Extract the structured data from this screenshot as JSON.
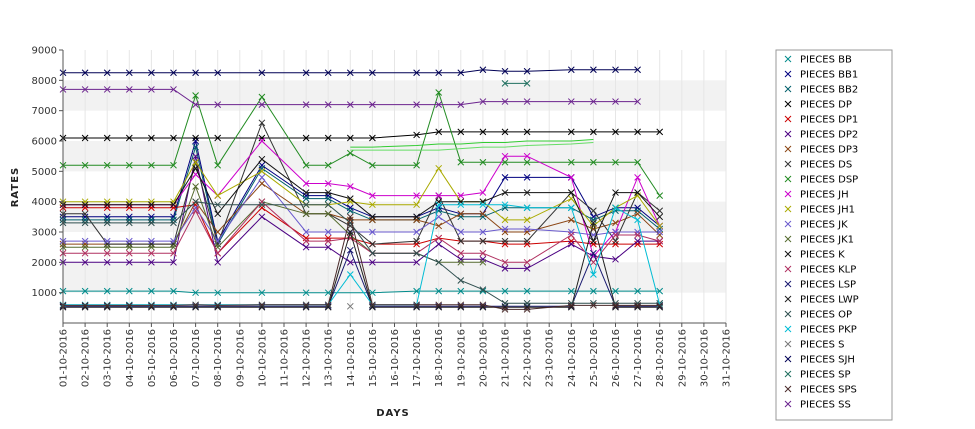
{
  "chart_data": {
    "type": "line",
    "title": "",
    "xlabel": "DAYS",
    "ylabel": "RATES",
    "ylim": [
      0,
      9000
    ],
    "yticks": [
      1000,
      2000,
      3000,
      4000,
      5000,
      6000,
      7000,
      8000,
      9000
    ],
    "grid": "alternating horizontal bands",
    "legend_position": "right",
    "x": [
      "01-10-2016",
      "02-10-2016",
      "03-10-2016",
      "04-10-2016",
      "05-10-2016",
      "06-10-2016",
      "07-10-2016",
      "08-10-2016",
      "09-10-2016",
      "10-10-2016",
      "11-10-2016",
      "12-10-2016",
      "13-10-2016",
      "14-10-2016",
      "15-10-2016",
      "16-10-2016",
      "17-10-2016",
      "18-10-2016",
      "19-10-2016",
      "20-10-2016",
      "21-10-2016",
      "22-10-2016",
      "23-10-2016",
      "24-10-2016",
      "25-10-2016",
      "26-10-2016",
      "27-10-2016",
      "28-10-2016",
      "29-10-2016",
      "30-10-2016",
      "31-10-2016"
    ],
    "series": [
      {
        "name": "PIECES BB",
        "color": "#008b8b",
        "values": [
          1050,
          1050,
          1050,
          1050,
          1050,
          1050,
          1000,
          1000,
          null,
          1000,
          null,
          1000,
          1000,
          null,
          1000,
          null,
          1050,
          1050,
          1050,
          1050,
          1050,
          1050,
          null,
          1050,
          1050,
          1050,
          1050,
          1050,
          null,
          null,
          null
        ]
      },
      {
        "name": "PIECES BB1",
        "color": "#000080",
        "values": [
          3500,
          3500,
          3500,
          3500,
          3500,
          3500,
          6000,
          2700,
          null,
          5200,
          null,
          4200,
          4200,
          3800,
          3500,
          null,
          3500,
          3800,
          3600,
          3600,
          4800,
          4800,
          null,
          4800,
          3500,
          3800,
          3800,
          3200,
          null,
          null,
          null
        ]
      },
      {
        "name": "PIECES BB2",
        "color": "#005f6b",
        "values": [
          3400,
          3400,
          3400,
          3400,
          3400,
          3400,
          5800,
          2600,
          null,
          5100,
          null,
          4100,
          4100,
          3700,
          3400,
          null,
          3400,
          3700,
          3500,
          3500,
          3800,
          3800,
          null,
          3800,
          3400,
          3700,
          3700,
          3100,
          null,
          null,
          null
        ]
      },
      {
        "name": "PIECES DP",
        "color": "#000000",
        "values": [
          6100,
          6100,
          6100,
          6100,
          6100,
          6100,
          6100,
          6100,
          null,
          6100,
          null,
          6100,
          6100,
          6100,
          6100,
          null,
          6200,
          6300,
          6300,
          6300,
          6300,
          6300,
          null,
          6300,
          6300,
          6300,
          6300,
          6300,
          null,
          null,
          null
        ]
      },
      {
        "name": "PIECES DP1",
        "color": "#cc0000",
        "values": [
          3800,
          3800,
          3800,
          3800,
          3800,
          3800,
          3900,
          2300,
          null,
          3800,
          null,
          2800,
          2800,
          2800,
          2600,
          null,
          2600,
          2800,
          2700,
          2700,
          2600,
          2600,
          null,
          2700,
          2600,
          2600,
          2600,
          2600,
          null,
          null,
          null
        ]
      },
      {
        "name": "PIECES DP2",
        "color": "#4b0082",
        "values": [
          2000,
          2000,
          2000,
          2000,
          2000,
          2000,
          5500,
          2000,
          null,
          3500,
          null,
          2500,
          2500,
          2000,
          2000,
          null,
          2000,
          2600,
          2100,
          2100,
          1800,
          1800,
          null,
          2600,
          2200,
          2100,
          2700,
          2700,
          null,
          null,
          null
        ]
      },
      {
        "name": "PIECES DP3",
        "color": "#8b4513",
        "values": [
          2600,
          2600,
          2600,
          2600,
          2600,
          2600,
          4000,
          3000,
          null,
          4600,
          null,
          3600,
          3600,
          3400,
          3400,
          null,
          3400,
          3200,
          3600,
          3600,
          3000,
          3000,
          null,
          3400,
          3100,
          3300,
          3600,
          2900,
          null,
          null,
          null
        ]
      },
      {
        "name": "PIECES DS",
        "color": "#333333",
        "values": [
          3600,
          3600,
          2600,
          2600,
          2600,
          2600,
          5300,
          2600,
          null,
          6600,
          null,
          3600,
          3600,
          3200,
          2600,
          null,
          2700,
          4200,
          2700,
          2700,
          2700,
          2700,
          null,
          4300,
          3700,
          2700,
          4300,
          3700,
          null,
          null,
          null
        ]
      },
      {
        "name": "PIECES DSP",
        "color": "#228b22",
        "values": [
          5200,
          5200,
          5200,
          5200,
          5200,
          5200,
          7500,
          5200,
          null,
          7450,
          null,
          5200,
          5200,
          5600,
          5200,
          null,
          5200,
          7600,
          5300,
          5300,
          5300,
          5300,
          null,
          5300,
          5300,
          5300,
          5300,
          4200,
          null,
          null,
          null
        ]
      },
      {
        "name": "PIECES JH",
        "color": "#cc00cc",
        "values": [
          3900,
          3900,
          3900,
          3900,
          3900,
          3900,
          4900,
          4200,
          null,
          6000,
          null,
          4600,
          4600,
          4500,
          4200,
          null,
          4200,
          4200,
          4200,
          4300,
          5500,
          5500,
          null,
          4800,
          2200,
          3000,
          4800,
          3200,
          null,
          null,
          null
        ]
      },
      {
        "name": "PIECES JH1",
        "color": "#aaaa00",
        "values": [
          4000,
          4000,
          4000,
          4000,
          4000,
          4000,
          5300,
          4200,
          null,
          5000,
          null,
          3900,
          3900,
          4000,
          3900,
          null,
          3900,
          5100,
          4000,
          4000,
          3400,
          3400,
          null,
          4100,
          3200,
          3800,
          4200,
          3200,
          null,
          null,
          null
        ]
      },
      {
        "name": "PIECES JK",
        "color": "#6a5acd",
        "values": [
          2700,
          2700,
          2700,
          2700,
          2700,
          2700,
          3800,
          2700,
          null,
          4800,
          null,
          3000,
          3000,
          3000,
          3000,
          null,
          3000,
          3500,
          3000,
          3000,
          3100,
          3100,
          null,
          3000,
          2900,
          3000,
          3000,
          3000,
          null,
          null,
          null
        ]
      },
      {
        "name": "PIECES JK1",
        "color": "#556b2f",
        "values": [
          2500,
          2500,
          2500,
          2500,
          2500,
          2500,
          4500,
          2500,
          null,
          4000,
          null,
          3600,
          3600,
          2900,
          2300,
          null,
          2300,
          2000,
          2000,
          2000,
          null,
          null,
          null,
          null,
          null,
          null,
          null,
          null,
          null,
          null,
          null
        ]
      },
      {
        "name": "PIECES K",
        "color": "#111111",
        "values": [
          3900,
          3900,
          3900,
          3900,
          3900,
          3900,
          5100,
          3600,
          null,
          5400,
          null,
          4300,
          4300,
          4100,
          3500,
          null,
          3500,
          4000,
          4000,
          4000,
          4300,
          4300,
          null,
          4300,
          2700,
          4300,
          4300,
          3500,
          null,
          null,
          null
        ]
      },
      {
        "name": "PIECES KLP",
        "color": "#b03060",
        "values": [
          2300,
          2300,
          2300,
          2300,
          2300,
          2300,
          3700,
          2300,
          null,
          4000,
          null,
          2700,
          2700,
          2800,
          2300,
          null,
          2300,
          2800,
          2300,
          2300,
          2000,
          2000,
          null,
          2900,
          2000,
          2900,
          2900,
          2700,
          null,
          null,
          null
        ]
      },
      {
        "name": "PIECES LSP",
        "color": "#191970",
        "values": [
          550,
          550,
          550,
          550,
          550,
          550,
          550,
          550,
          null,
          550,
          null,
          550,
          550,
          2400,
          550,
          null,
          550,
          550,
          550,
          550,
          550,
          550,
          null,
          550,
          2300,
          550,
          550,
          550,
          null,
          null,
          null
        ]
      },
      {
        "name": "PIECES LWP",
        "color": "#202020",
        "values": [
          520,
          520,
          520,
          520,
          520,
          520,
          520,
          520,
          null,
          520,
          null,
          520,
          520,
          3000,
          520,
          null,
          520,
          520,
          520,
          520,
          520,
          520,
          null,
          520,
          3300,
          520,
          520,
          520,
          null,
          null,
          null
        ]
      },
      {
        "name": "PIECES OP",
        "color": "#2f4f4f",
        "values": [
          3300,
          3300,
          3300,
          3300,
          3300,
          3300,
          4000,
          3900,
          null,
          3900,
          null,
          3900,
          3900,
          3300,
          2300,
          null,
          2300,
          2000,
          1400,
          1100,
          650,
          650,
          null,
          650,
          650,
          650,
          650,
          650,
          null,
          null,
          null
        ]
      },
      {
        "name": "PIECES PKP",
        "color": "#00bcd4",
        "values": [
          600,
          600,
          600,
          600,
          600,
          600,
          600,
          600,
          null,
          600,
          null,
          600,
          600,
          1600,
          600,
          null,
          600,
          3900,
          3900,
          3900,
          3900,
          3800,
          null,
          3800,
          1600,
          3800,
          3400,
          600,
          null,
          null,
          null
        ]
      },
      {
        "name": "PIECES S",
        "color": "#777777",
        "values": [
          null,
          null,
          null,
          null,
          null,
          null,
          null,
          null,
          null,
          null,
          null,
          null,
          null,
          550,
          null,
          null,
          null,
          null,
          null,
          null,
          null,
          null,
          null,
          null,
          null,
          null,
          null,
          null,
          null,
          null,
          null
        ]
      },
      {
        "name": "PIECES SJH",
        "color": "#000055",
        "values": [
          8250,
          8250,
          8250,
          8250,
          8250,
          8250,
          8250,
          8250,
          null,
          8250,
          null,
          8250,
          8250,
          8250,
          8250,
          null,
          8250,
          8250,
          8250,
          8350,
          8300,
          8300,
          null,
          8350,
          8350,
          8350,
          8350,
          null,
          null,
          null,
          null
        ]
      },
      {
        "name": "PIECES SP",
        "color": "#1f6f5f",
        "values": [
          null,
          null,
          null,
          null,
          null,
          null,
          null,
          null,
          null,
          null,
          null,
          null,
          null,
          null,
          null,
          null,
          null,
          null,
          null,
          null,
          7900,
          7900,
          null,
          null,
          null,
          null,
          null,
          null,
          null,
          null,
          null
        ]
      },
      {
        "name": "PIECES SPS",
        "color": "#4a2a2a",
        "values": [
          580,
          580,
          580,
          580,
          580,
          580,
          600,
          580,
          null,
          600,
          null,
          600,
          600,
          3500,
          600,
          null,
          600,
          600,
          600,
          600,
          450,
          450,
          null,
          580,
          580,
          580,
          580,
          580,
          null,
          null,
          null
        ]
      },
      {
        "name": "PIECES SS",
        "color": "#6b238e",
        "values": [
          7700,
          7700,
          7700,
          7700,
          7700,
          7700,
          7200,
          7200,
          null,
          7200,
          null,
          7200,
          7200,
          7200,
          7200,
          null,
          7200,
          7200,
          7200,
          7300,
          7300,
          7300,
          null,
          7300,
          7300,
          7300,
          7300,
          null,
          null,
          null,
          null
        ]
      },
      {
        "name": "",
        "color": "#33cc33",
        "values": [
          null,
          null,
          null,
          null,
          null,
          null,
          null,
          null,
          null,
          null,
          null,
          null,
          null,
          5800,
          5800,
          null,
          5850,
          5900,
          5900,
          5950,
          5950,
          6000,
          null,
          6000,
          6050,
          null,
          null,
          null,
          null,
          null,
          null
        ]
      },
      {
        "name": "",
        "color": "#66dd66",
        "values": [
          null,
          null,
          null,
          null,
          null,
          null,
          null,
          null,
          null,
          null,
          null,
          null,
          null,
          5700,
          5700,
          null,
          5700,
          5700,
          5750,
          5800,
          5800,
          5850,
          null,
          5900,
          5950,
          null,
          null,
          null,
          null,
          null,
          null
        ]
      }
    ]
  }
}
